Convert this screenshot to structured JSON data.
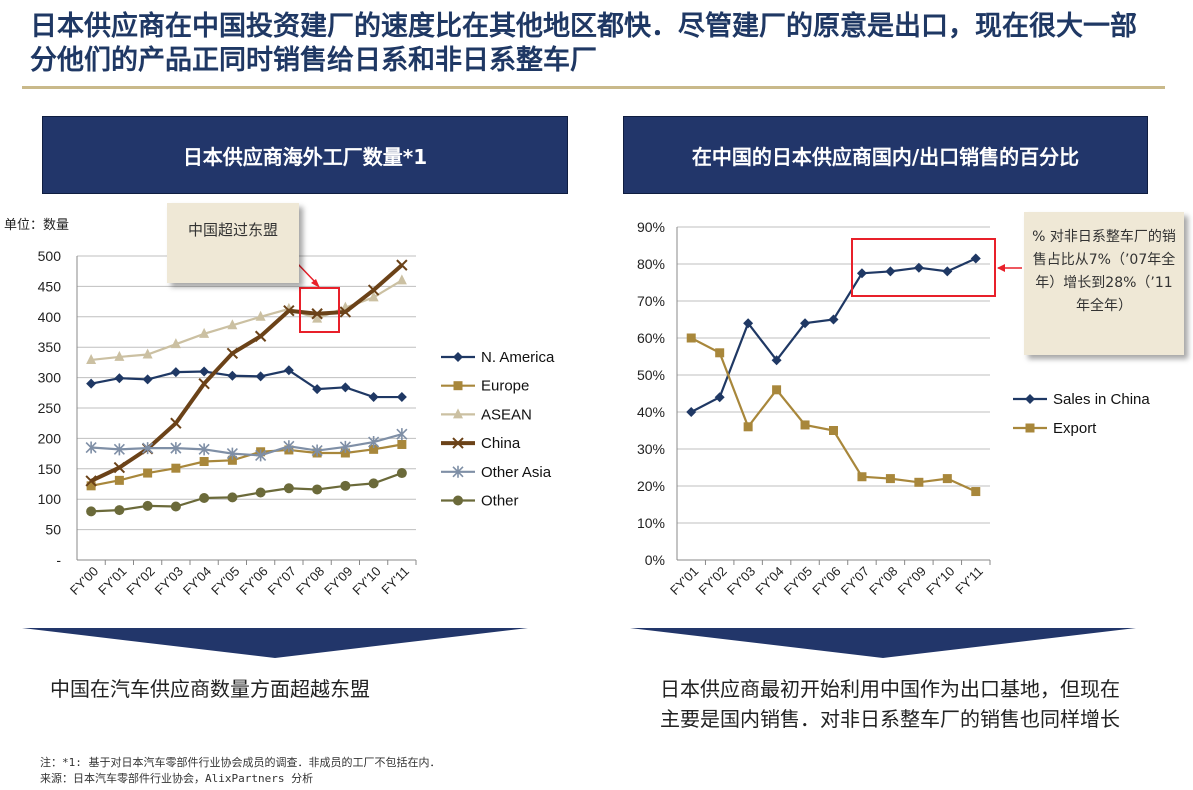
{
  "title": "日本供应商在中国投资建厂的速度比在其他地区都快．尽管建厂的原意是出口，现在很大一部分他们的产品正同时销售给日系和非日系整车厂",
  "left_panel": {
    "heading": "日本供应商海外工厂数量*1",
    "unit_label": "单位：数量",
    "callout": "中国超过东盟",
    "summary": "中国在汽车供应商数量方面超越东盟"
  },
  "right_panel": {
    "heading": "在中国的日本供应商国内/出口销售的百分比",
    "callout": "% 对非日系整车厂的销售占比从7%（’07年全年）增长到28%（’11年全年）",
    "summary": "日本供应商最初开始利用中国作为出口基地，但现在主要是国内销售．对非日系整车厂的销售也同样增长"
  },
  "footnotes": {
    "note": "注：*1:  基于对日本汽车零部件行业协会成员的调查．非成员的工厂不包括在内．",
    "source": "来源：日本汽车零部件行业协会，AlixPartners 分析"
  },
  "colors": {
    "heading_bg": "#22366a",
    "title": "#1f3864",
    "highlight_box": "#e8202a",
    "callout_bg": "#efe8d6"
  },
  "chart_data": [
    {
      "type": "line",
      "x": [
        "FY'00",
        "FY'01",
        "FY'02",
        "FY'03",
        "FY'04",
        "FY'05",
        "FY'06",
        "FY'07",
        "FY'08",
        "FY'09",
        "FY'10",
        "FY'11"
      ],
      "ylim": [
        0,
        500
      ],
      "yticks": [
        "-",
        "50",
        "100",
        "150",
        "200",
        "250",
        "300",
        "350",
        "400",
        "450",
        "500"
      ],
      "ylabel": "单位：数量",
      "legend_position": "right",
      "series": [
        {
          "name": "N. America",
          "color": "#1f3864",
          "marker": "diamond",
          "values": [
            290,
            299,
            297,
            309,
            310,
            303,
            302,
            312,
            281,
            284,
            268,
            268
          ]
        },
        {
          "name": "Europe",
          "color": "#a8873b",
          "marker": "square",
          "values": [
            122,
            131,
            143,
            151,
            162,
            164,
            178,
            181,
            176,
            176,
            182,
            190
          ]
        },
        {
          "name": "ASEAN",
          "color": "#cbc0a2",
          "marker": "triangle",
          "values": [
            329,
            334,
            338,
            355,
            372,
            386,
            400,
            413,
            397,
            415,
            432,
            460
          ]
        },
        {
          "name": "China",
          "color": "#6b4218",
          "marker": "x",
          "values": [
            130,
            152,
            183,
            225,
            290,
            340,
            368,
            410,
            405,
            408,
            444,
            485
          ]
        },
        {
          "name": "Other Asia",
          "color": "#7f8fa6",
          "marker": "star",
          "values": [
            185,
            182,
            184,
            184,
            182,
            175,
            172,
            187,
            180,
            186,
            194,
            207
          ]
        },
        {
          "name": "Other",
          "color": "#6b6a3a",
          "marker": "circle",
          "values": [
            80,
            82,
            89,
            88,
            102,
            103,
            111,
            118,
            116,
            122,
            126,
            143
          ]
        }
      ]
    },
    {
      "type": "line",
      "x": [
        "FY'01",
        "FY'02",
        "FY'03",
        "FY'04",
        "FY'05",
        "FY'06",
        "FY'07",
        "FY'08",
        "FY'09",
        "FY'10",
        "FY'11"
      ],
      "ylim": [
        0,
        90
      ],
      "yticks": [
        "0%",
        "10%",
        "20%",
        "30%",
        "40%",
        "50%",
        "60%",
        "70%",
        "80%",
        "90%"
      ],
      "legend_position": "right",
      "series": [
        {
          "name": "Sales in China",
          "color": "#1f3864",
          "marker": "diamond",
          "values": [
            40,
            44,
            64,
            54,
            64,
            65,
            77.5,
            78,
            79,
            78,
            81.5
          ]
        },
        {
          "name": "Export",
          "color": "#a8873b",
          "marker": "square",
          "values": [
            60,
            56,
            36,
            46,
            36.5,
            35,
            22.5,
            22,
            21,
            22,
            18.5
          ]
        }
      ]
    }
  ]
}
